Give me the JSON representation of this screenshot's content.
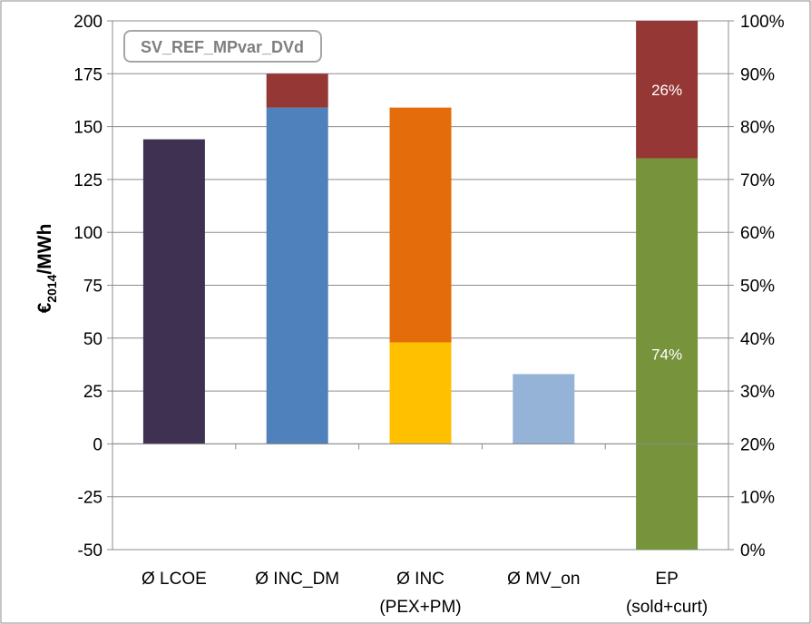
{
  "chart_data": {
    "type": "bar",
    "annotation": "SV_REF_MPvar_DVd",
    "ylabel_main": "€",
    "ylabel_sub": "2014",
    "ylabel_tail": "/MWh",
    "ylim": [
      -50,
      200
    ],
    "yticks": [
      "200",
      "175",
      "150",
      "125",
      "100",
      "75",
      "50",
      "25",
      "0",
      "-25",
      "-50"
    ],
    "y2lim": [
      0,
      100
    ],
    "y2ticks": [
      "100%",
      "90%",
      "80%",
      "70%",
      "60%",
      "50%",
      "40%",
      "30%",
      "20%",
      "10%",
      "0%"
    ],
    "grid": true,
    "categories": [
      {
        "line1": "Ø LCOE",
        "line2": ""
      },
      {
        "line1": "Ø INC_DM",
        "line2": ""
      },
      {
        "line1": "Ø INC",
        "line2": "(PEX+PM)"
      },
      {
        "line1": "Ø MV_on",
        "line2": ""
      },
      {
        "line1": "EP",
        "line2": "(sold+curt)"
      }
    ],
    "bars": [
      {
        "axis": "left",
        "segments": [
          {
            "from": 0,
            "to": 144,
            "color": "#3f3151"
          }
        ]
      },
      {
        "axis": "left",
        "segments": [
          {
            "from": 0,
            "to": 159,
            "color": "#4f81bd"
          },
          {
            "from": 159,
            "to": 175,
            "color": "#953735"
          }
        ]
      },
      {
        "axis": "left",
        "segments": [
          {
            "from": 0,
            "to": 48,
            "color": "#ffc000"
          },
          {
            "from": 48,
            "to": 159,
            "color": "#e46c0a"
          }
        ]
      },
      {
        "axis": "left",
        "segments": [
          {
            "from": 0,
            "to": 33,
            "color": "#95b3d7"
          }
        ]
      },
      {
        "axis": "right",
        "segments": [
          {
            "from": 0,
            "to": 74,
            "color": "#77933c",
            "label": "74%"
          },
          {
            "from": 74,
            "to": 100,
            "color": "#953735",
            "label": "26%"
          }
        ]
      }
    ]
  }
}
